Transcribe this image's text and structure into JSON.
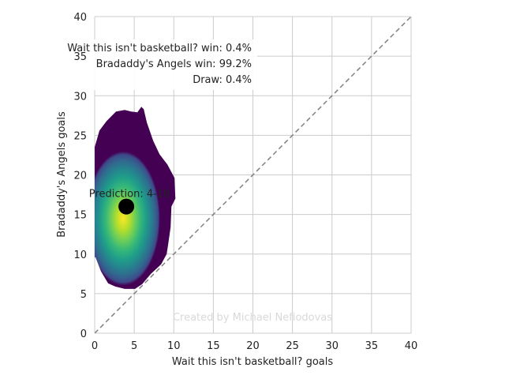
{
  "chart_data": {
    "type": "heatmap",
    "xlabel": "Wait this isn't basketball? goals",
    "ylabel": "Bradaddy's Angels goals",
    "xlim": [
      0,
      40
    ],
    "ylim": [
      0,
      40
    ],
    "xticks": [
      0,
      5,
      10,
      15,
      20,
      25,
      30,
      35,
      40
    ],
    "yticks": [
      0,
      5,
      10,
      15,
      20,
      25,
      30,
      35,
      40
    ],
    "grid": true,
    "colormap": "viridis",
    "density_mode": {
      "x": 3.6,
      "y": 14.5
    },
    "density_outline": [
      [
        0.0,
        23.5
      ],
      [
        0.6,
        25.6
      ],
      [
        1.5,
        26.8
      ],
      [
        2.7,
        28.0
      ],
      [
        3.8,
        28.2
      ],
      [
        4.6,
        28.0
      ],
      [
        5.4,
        27.9
      ],
      [
        5.9,
        28.6
      ],
      [
        6.2,
        28.3
      ],
      [
        6.6,
        26.6
      ],
      [
        7.4,
        24.3
      ],
      [
        8.2,
        22.6
      ],
      [
        9.2,
        21.3
      ],
      [
        10.1,
        19.6
      ],
      [
        10.2,
        17.0
      ],
      [
        9.7,
        16.0
      ],
      [
        9.6,
        13.4
      ],
      [
        9.3,
        11.3
      ],
      [
        9.1,
        10.0
      ],
      [
        8.4,
        8.7
      ],
      [
        7.1,
        7.5
      ],
      [
        6.0,
        6.2
      ],
      [
        5.1,
        5.6
      ],
      [
        3.8,
        5.6
      ],
      [
        2.6,
        5.9
      ],
      [
        1.7,
        6.3
      ],
      [
        0.8,
        7.8
      ],
      [
        0.1,
        9.6
      ],
      [
        0.0,
        9.6
      ]
    ],
    "prediction": {
      "x": 4,
      "y": 16,
      "label": "Prediction: 4-16"
    },
    "reference_line": {
      "from": [
        0,
        0
      ],
      "to": [
        40,
        40
      ],
      "style": "dashed",
      "color": "#808080"
    },
    "annotations": {
      "home_win": "Wait this isn't basketball? win: 0.4%",
      "away_win": "Bradaddy's Angels win: 99.2%",
      "draw": "Draw: 0.4%"
    },
    "watermark": "Created by Michael Nefiodovas"
  },
  "colors": {
    "grid": "#cccccc",
    "axis_text": "#222222",
    "marker": "#000000",
    "watermark": "#d9d9d9"
  }
}
